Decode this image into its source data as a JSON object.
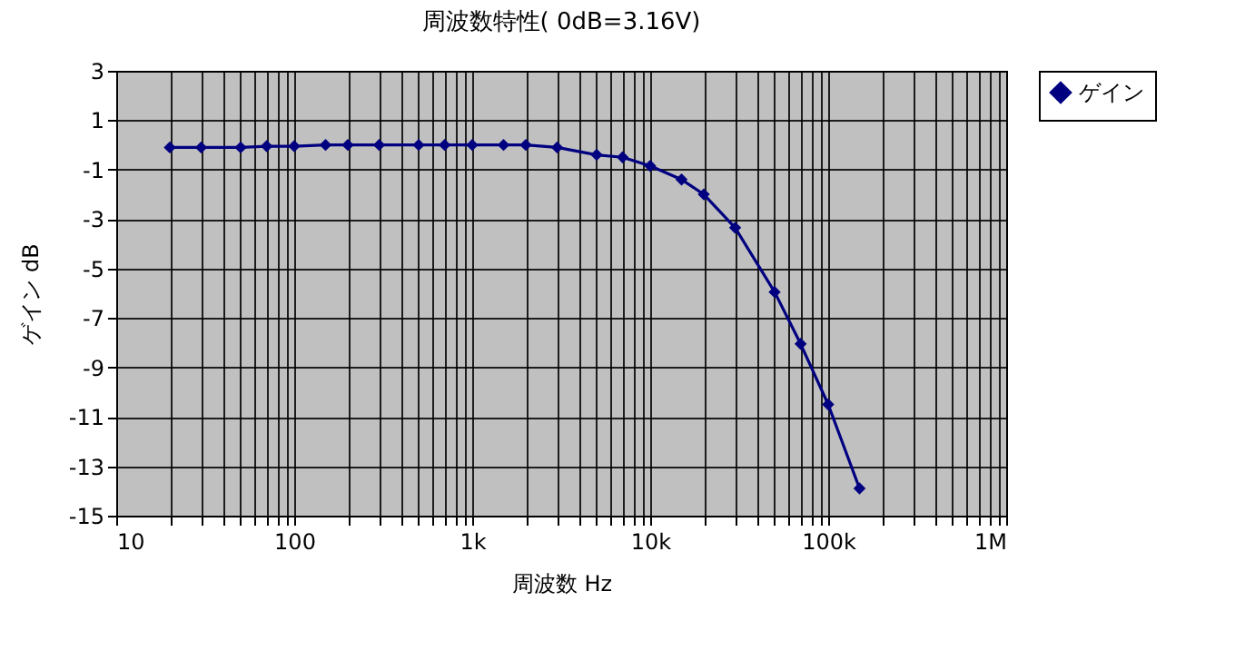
{
  "chart_data": {
    "type": "line",
    "title": "周波数特性( 0dB=3.16V)",
    "xlabel": "周波数 Hz",
    "ylabel": "ゲイン dB",
    "x": [
      20,
      30,
      50,
      70,
      100,
      150,
      200,
      300,
      500,
      700,
      1000,
      1500,
      2000,
      3000,
      5000,
      7000,
      10000,
      15000,
      20000,
      30000,
      50000,
      70000,
      100000,
      150000
    ],
    "series": [
      {
        "name": "ゲイン",
        "color": "#000080",
        "values": [
          -0.1,
          -0.1,
          -0.1,
          -0.05,
          -0.05,
          0.0,
          0.0,
          0.0,
          0.0,
          0.0,
          0.0,
          0.0,
          0.0,
          -0.1,
          -0.4,
          -0.5,
          -0.85,
          -1.4,
          -2.0,
          -3.35,
          -5.95,
          -8.05,
          -10.5,
          -13.9
        ]
      }
    ],
    "log": "x",
    "xlim": [
      10,
      1000000
    ],
    "xticks": [
      10,
      {
        "value": 20,
        "label": null
      },
      {
        "value": 30,
        "label": null
      },
      {
        "value": 40,
        "label": null
      },
      {
        "value": 50,
        "label": null
      },
      {
        "value": 60,
        "label": null
      },
      {
        "value": 70,
        "label": null
      },
      {
        "value": 80,
        "label": null
      },
      {
        "value": 90,
        "label": null
      },
      100,
      {
        "value": 200,
        "label": null
      },
      {
        "value": 300,
        "label": null
      },
      {
        "value": 400,
        "label": null
      },
      {
        "value": 500,
        "label": null
      },
      {
        "value": 600,
        "label": null
      },
      {
        "value": 700,
        "label": null
      },
      {
        "value": 800,
        "label": null
      },
      {
        "value": 900,
        "label": null
      },
      {
        "value": 1000,
        "label": "1k"
      },
      {
        "value": 2000,
        "label": null
      },
      {
        "value": 3000,
        "label": null
      },
      {
        "value": 4000,
        "label": null
      },
      {
        "value": 5000,
        "label": null
      },
      {
        "value": 6000,
        "label": null
      },
      {
        "value": 7000,
        "label": null
      },
      {
        "value": 8000,
        "label": null
      },
      {
        "value": 9000,
        "label": null
      },
      {
        "value": 10000,
        "label": "10k"
      },
      {
        "value": 20000,
        "label": null
      },
      {
        "value": 30000,
        "label": null
      },
      {
        "value": 40000,
        "label": null
      },
      {
        "value": 50000,
        "label": null
      },
      {
        "value": 60000,
        "label": null
      },
      {
        "value": 70000,
        "label": null
      },
      {
        "value": 80000,
        "label": null
      },
      {
        "value": 90000,
        "label": null
      },
      {
        "value": 100000,
        "label": "100k"
      },
      {
        "value": 200000,
        "label": null
      },
      {
        "value": 300000,
        "label": null
      },
      {
        "value": 400000,
        "label": null
      },
      {
        "value": 500000,
        "label": null
      },
      {
        "value": 600000,
        "label": null
      },
      {
        "value": 700000,
        "label": null
      },
      {
        "value": 800000,
        "label": null
      },
      {
        "value": 900000,
        "label": null
      },
      {
        "value": 1000000,
        "label": "1M"
      }
    ],
    "ylim": [
      -15,
      3
    ],
    "yticks": [
      3,
      1,
      -1,
      -3,
      -5,
      -7,
      -9,
      -11,
      -13,
      -15
    ],
    "grid": true,
    "legend": "right",
    "marker": "diamond",
    "line_style": "solid"
  }
}
